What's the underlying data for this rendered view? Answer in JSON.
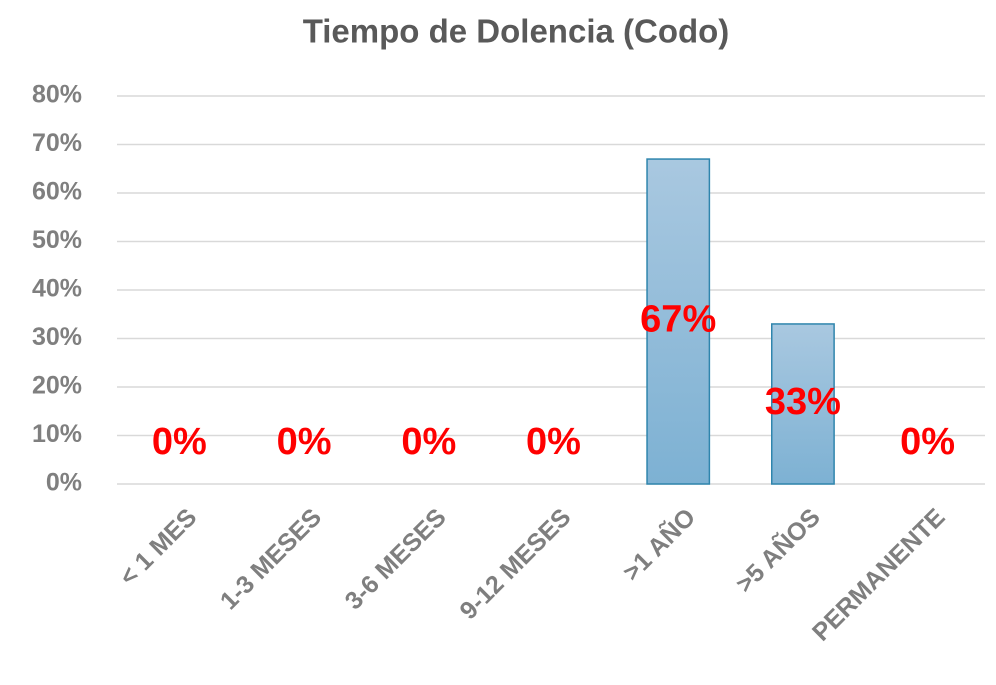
{
  "chart_data": {
    "type": "bar",
    "title": "Tiempo de Dolencia (Codo)",
    "categories": [
      "< 1 MES",
      "1-3 MESES",
      "3-6 MESES",
      "9-12 MESES",
      ">1 AÑO",
      ">5 AÑOS",
      "PERMANENTE"
    ],
    "values": [
      0,
      0,
      0,
      0,
      67,
      33,
      0
    ],
    "value_labels": [
      "0%",
      "0%",
      "0%",
      "0%",
      "67%",
      "33%",
      "0%"
    ],
    "color": "#8dbad8",
    "ylim": [
      0,
      80
    ],
    "yticks": [
      {
        "value": 0,
        "label": "0%"
      },
      {
        "value": 10,
        "label": "10%"
      },
      {
        "value": 20,
        "label": "20%"
      },
      {
        "value": 30,
        "label": "30%"
      },
      {
        "value": 40,
        "label": "40%"
      },
      {
        "value": 50,
        "label": "50%"
      },
      {
        "value": 60,
        "label": "60%"
      },
      {
        "value": 70,
        "label": "70%"
      },
      {
        "value": 80,
        "label": "80%"
      }
    ],
    "grid": true
  }
}
